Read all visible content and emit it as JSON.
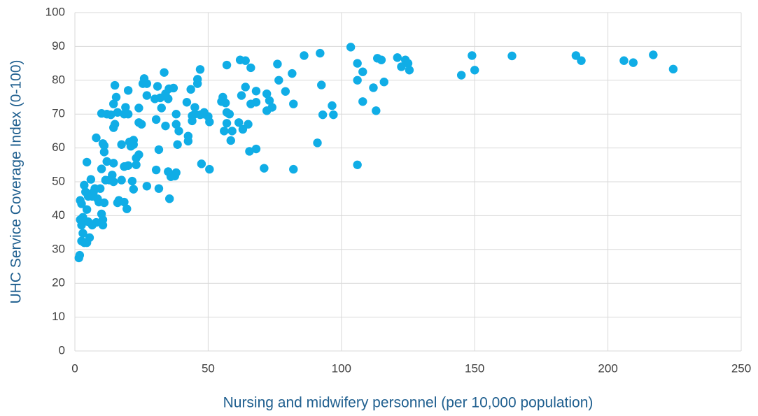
{
  "chart_data": {
    "type": "scatter",
    "xlabel": "Nursing and midwifery personnel (per 10,000 population)",
    "ylabel": "UHC Service Coverage Index (0-100)",
    "color": "#10ade6",
    "grid": true,
    "xlim": [
      0,
      250
    ],
    "xticks": [
      0,
      50,
      100,
      150,
      200,
      250
    ],
    "ylim": [
      0,
      100
    ],
    "yticks": [
      0,
      10,
      20,
      30,
      40,
      50,
      60,
      70,
      80,
      90,
      100
    ],
    "x": [
      103.5,
      106,
      108,
      106,
      108,
      106,
      112,
      113,
      113.5,
      115,
      116,
      121,
      122.5,
      124,
      125,
      125.5,
      145,
      149,
      150,
      164,
      188,
      190,
      206,
      209.5,
      217,
      224.5,
      92,
      86,
      92.5,
      93,
      96.5,
      97,
      91,
      82,
      81.5,
      82,
      79,
      76,
      76.5,
      74,
      73,
      72,
      71,
      72,
      68,
      68,
      66,
      65,
      68,
      65.5,
      66,
      64,
      62,
      64,
      62.5,
      63,
      61.5,
      59,
      58.5,
      58,
      57,
      57,
      56,
      56.5,
      55.5,
      55,
      57,
      50.5,
      50.5,
      50,
      48,
      47,
      48.5,
      47,
      46,
      46,
      45,
      45,
      44,
      44,
      43.5,
      42,
      42.5,
      42.5,
      47.5,
      39,
      38.5,
      38,
      38,
      38,
      37.5,
      37,
      36,
      35,
      35.5,
      35.3,
      35,
      34,
      34,
      33.5,
      32.5,
      32,
      31.5,
      31.5,
      31,
      30.5,
      30,
      30.5,
      27,
      27,
      27,
      26,
      25.5,
      25,
      24,
      24,
      24,
      23,
      23,
      22,
      22,
      22,
      21.5,
      21,
      20.5,
      20,
      20,
      20,
      19.5,
      19,
      18.5,
      18.5,
      18.5,
      17.5,
      17.5,
      16.5,
      16,
      16,
      15.5,
      15,
      15,
      14.5,
      14.5,
      14.5,
      14.5,
      14,
      13.5,
      13,
      12,
      12,
      11.5,
      11,
      11,
      11,
      10.5,
      10,
      10,
      10,
      10.5,
      10.5,
      9.5,
      9,
      8.5,
      8,
      8,
      7.5,
      7,
      6.5,
      6.5,
      6,
      5.5,
      5,
      4.5,
      4.5,
      4.5,
      4,
      3.5,
      3,
      3,
      2.5,
      2.5,
      2,
      2,
      2.5,
      1.8,
      1.5,
      3.5,
      5
    ],
    "values": [
      89.8,
      85,
      82.5,
      80,
      73.7,
      55,
      77.8,
      71,
      86.5,
      86,
      79.5,
      86.7,
      84,
      86,
      85,
      83,
      81.5,
      87.3,
      83,
      87.2,
      87.3,
      85.8,
      85.8,
      85.2,
      87.5,
      83.3,
      88,
      87.3,
      78.6,
      69.8,
      72.5,
      69.8,
      61.5,
      53.7,
      82,
      73,
      76.7,
      84.8,
      80,
      72,
      74,
      76,
      54,
      71,
      76.8,
      73.5,
      73,
      67,
      59.7,
      59,
      83.7,
      85.8,
      86,
      78,
      75.5,
      65.5,
      67.5,
      65,
      62.2,
      70,
      70.5,
      67.3,
      65,
      73.3,
      75,
      73.7,
      84.5,
      53.7,
      67.7,
      69.3,
      70,
      69.8,
      70.5,
      83.2,
      80.3,
      79,
      72,
      70,
      68,
      69.5,
      77.3,
      73.5,
      63.5,
      62,
      55.3,
      65,
      61,
      67,
      70,
      52.7,
      51.7,
      77.7,
      51.5,
      53,
      45,
      77.5,
      74.5,
      76,
      66.5,
      82.3,
      71.8,
      74.8,
      59.5,
      48,
      78.2,
      53.5,
      74.5,
      68.4,
      48.7,
      75.5,
      79,
      80.5,
      79,
      67,
      67.5,
      71.8,
      58,
      55,
      57,
      62.3,
      47.8,
      61,
      50.2,
      60.5,
      61.8,
      77,
      54.8,
      70,
      42,
      72,
      70,
      54.5,
      44,
      61,
      50.5,
      44.5,
      70.5,
      43.8,
      75,
      67,
      78.5,
      66,
      73,
      55.5,
      50,
      52,
      69.8,
      50.5,
      56,
      70,
      50.5,
      43.8,
      58.8,
      60.7,
      61.3,
      70.2,
      53.8,
      40.5,
      37.2,
      38.8,
      48,
      44,
      45,
      63,
      38,
      48,
      47,
      37.2,
      45.7,
      50.7,
      33.5,
      38.2,
      55.8,
      41.8,
      32,
      47,
      49,
      34.8,
      39.5,
      37.2,
      32.5,
      38.8,
      44.5,
      43.5,
      28.3,
      27.5,
      32,
      45.7
    ]
  }
}
